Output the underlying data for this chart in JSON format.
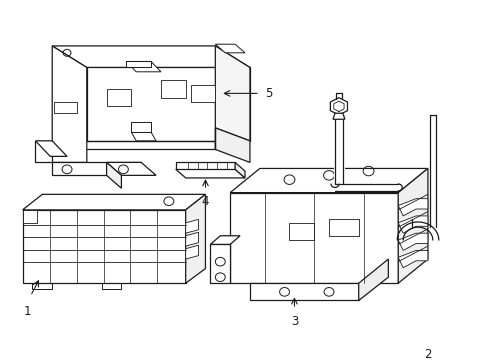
{
  "bg_color": "#ffffff",
  "line_color": "#1a1a1a",
  "line_width": 0.9,
  "label_fontsize": 8.5
}
